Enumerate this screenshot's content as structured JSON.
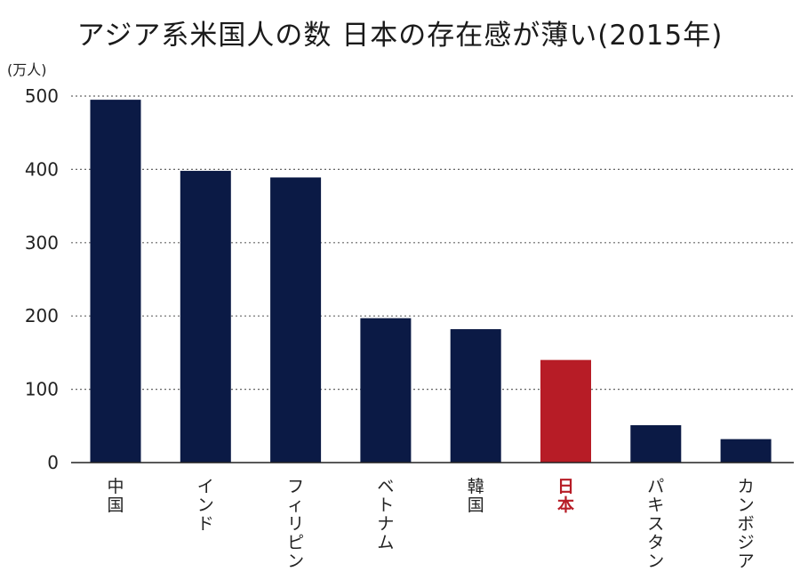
{
  "chart_data": {
    "type": "bar",
    "title": "アジア系米国人の数 日本の存在感が薄い(2015年)",
    "ylabel": "(万人)",
    "ylim": [
      0,
      500
    ],
    "yticks": [
      0,
      100,
      200,
      300,
      400,
      500
    ],
    "grid": true,
    "categories": [
      "中国",
      "インド",
      "フィリピン",
      "ベトナム",
      "韓国",
      "日本",
      "パキスタン",
      "カンボジア"
    ],
    "values": [
      495,
      398,
      389,
      197,
      182,
      140,
      51,
      32
    ],
    "bar_color": "#0b1a45",
    "highlight_index": 5,
    "highlight_color": "#b71c26"
  }
}
